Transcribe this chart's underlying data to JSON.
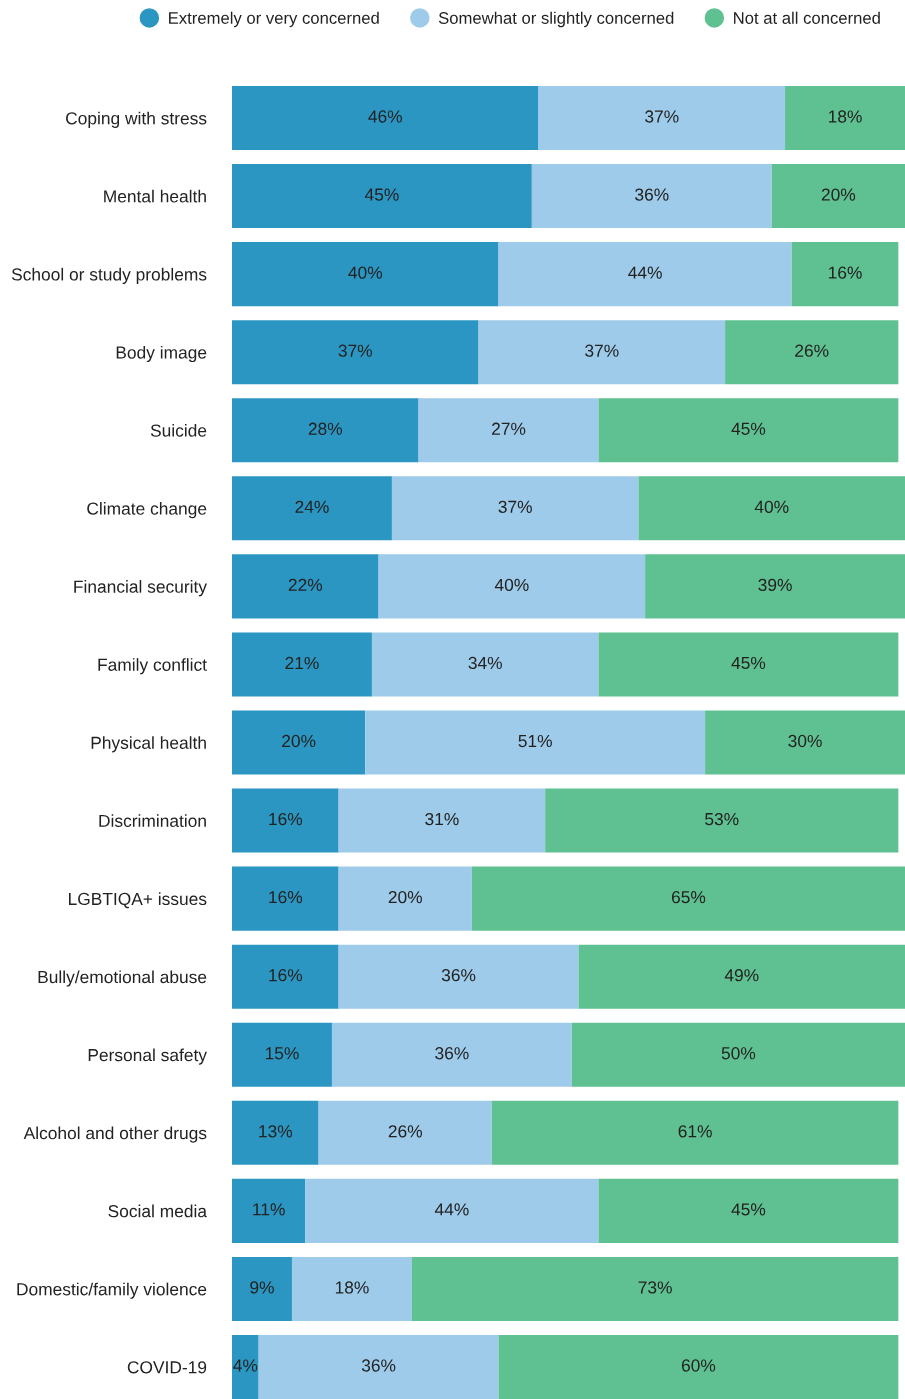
{
  "chart_data": {
    "type": "bar",
    "orientation": "horizontal",
    "stacked": true,
    "legend": "top",
    "grid": false,
    "tick_labels": "y",
    "categories": [
      "Coping with stress",
      "Mental health",
      "School or study problems",
      "Body image",
      "Suicide",
      "Climate change",
      "Financial security",
      "Family conflict",
      "Physical health",
      "Discrimination",
      "LGBTIQA+ issues",
      "Bully/emotional abuse",
      "Personal safety",
      "Alcohol and other drugs",
      "Social media",
      "Domestic/family violence",
      "COVID-19"
    ],
    "series": [
      {
        "name": "Extremely or very concerned",
        "color": "#2b96c1",
        "values": [
          46,
          45,
          40,
          37,
          28,
          24,
          22,
          21,
          20,
          16,
          16,
          16,
          15,
          13,
          11,
          9,
          4
        ],
        "value_labels": [
          "46%",
          "45%",
          "40%",
          "37%",
          "28%",
          "24%",
          "22%",
          "21%",
          "20%",
          "16%",
          "16%",
          "16%",
          "15%",
          "13%",
          "11%",
          "9%",
          "4%"
        ]
      },
      {
        "name": "Somewhat or slightly concerned",
        "color": "#9ecbea",
        "values": [
          37,
          36,
          44,
          37,
          27,
          37,
          40,
          34,
          51,
          31,
          20,
          36,
          36,
          26,
          44,
          18,
          36
        ],
        "value_labels": [
          "37%",
          "36%",
          "44%",
          "37%",
          "27%",
          "37%",
          "40%",
          "34%",
          "51%",
          "31%",
          "20%",
          "36%",
          "36%",
          "26%",
          "44%",
          "18%",
          "36%"
        ]
      },
      {
        "name": "Not at all concerned",
        "color": "#5fc191",
        "values": [
          18,
          20,
          16,
          26,
          45,
          40,
          39,
          45,
          30,
          53,
          65,
          49,
          50,
          61,
          45,
          73,
          60
        ],
        "value_labels": [
          "18%",
          "20%",
          "16%",
          "26%",
          "45%",
          "40%",
          "39%",
          "45%",
          "30%",
          "53%",
          "65%",
          "49%",
          "50%",
          "61%",
          "45%",
          "73%",
          "60%"
        ]
      }
    ]
  }
}
